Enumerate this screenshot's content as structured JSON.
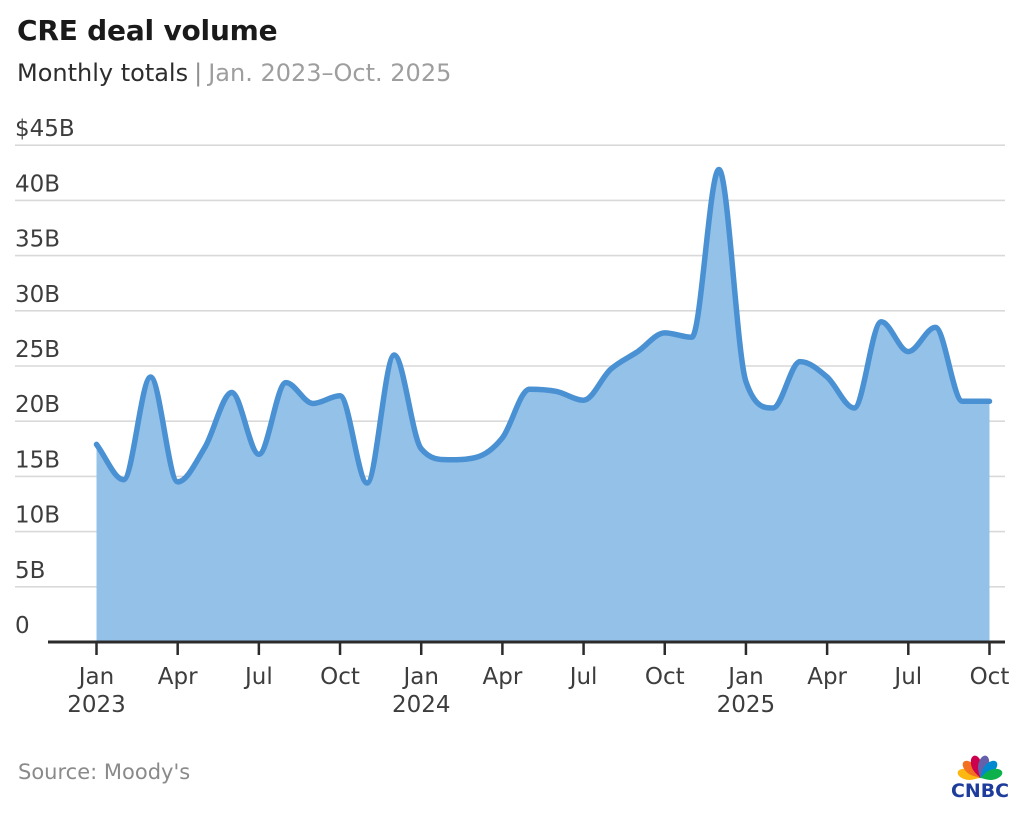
{
  "header": {
    "title": "CRE deal volume",
    "subtitle_main": "Monthly totals",
    "subtitle_separator": "|",
    "subtitle_range": "Jan. 2023–Oct. 2025"
  },
  "footer": {
    "source": "Source: Moody's",
    "logo_text": "CNBC"
  },
  "colors": {
    "line": "#4a91d3",
    "fill": "#94c1e8",
    "grid": "#d9d9d9",
    "axis": "#2b2b2b",
    "tick": "#2b2b2b",
    "axis_label": "#3d3d3d",
    "logo_text": "#1e3c9b",
    "peacock": [
      "#FCB711",
      "#F37021",
      "#CC004C",
      "#6460AA",
      "#0089D0",
      "#0DB14B"
    ]
  },
  "chart_data": {
    "type": "area",
    "title": "CRE deal volume",
    "subtitle": "Monthly totals | Jan. 2023–Oct. 2025",
    "unit": "USD billions",
    "source": "Moody's",
    "grid": true,
    "legend": false,
    "ylim": [
      0,
      45
    ],
    "x": [
      "Jan 2023",
      "Feb 2023",
      "Mar 2023",
      "Apr 2023",
      "May 2023",
      "Jun 2023",
      "Jul 2023",
      "Aug 2023",
      "Sep 2023",
      "Oct 2023",
      "Nov 2023",
      "Dec 2023",
      "Jan 2024",
      "Feb 2024",
      "Mar 2024",
      "Apr 2024",
      "May 2024",
      "Jun 2024",
      "Jul 2024",
      "Aug 2024",
      "Sep 2024",
      "Oct 2024",
      "Nov 2024",
      "Dec 2024",
      "Jan 2025",
      "Feb 2025",
      "Mar 2025",
      "Apr 2025",
      "May 2025",
      "Jun 2025",
      "Jul 2025",
      "Aug 2025",
      "Sep 2025",
      "Oct 2025"
    ],
    "values": [
      17.9,
      14.7,
      24.0,
      14.5,
      17.6,
      22.6,
      17.0,
      23.5,
      21.6,
      22.3,
      14.4,
      26.0,
      17.5,
      16.5,
      16.7,
      18.5,
      22.9,
      22.7,
      21.9,
      24.7,
      26.3,
      28.0,
      27.6,
      42.8,
      23.6,
      21.2,
      25.4,
      24.0,
      21.2,
      29.0,
      26.3,
      28.5,
      21.8,
      21.8
    ],
    "yticks": [
      {
        "label": "$45B",
        "value": 45
      },
      {
        "label": "40B",
        "value": 40
      },
      {
        "label": "35B",
        "value": 35
      },
      {
        "label": "30B",
        "value": 30
      },
      {
        "label": "25B",
        "value": 25
      },
      {
        "label": "20B",
        "value": 20
      },
      {
        "label": "15B",
        "value": 15
      },
      {
        "label": "10B",
        "value": 10
      },
      {
        "label": "5B",
        "value": 5
      },
      {
        "label": "0",
        "value": 0
      }
    ],
    "xtick_labels": [
      "Jan",
      "Apr",
      "Jul",
      "Oct",
      "Jan",
      "Apr",
      "Jul",
      "Oct",
      "Jan",
      "Apr",
      "Jul",
      "Oct"
    ],
    "year_labels": [
      {
        "text": "2023",
        "month_index": 0
      },
      {
        "text": "2024",
        "month_index": 12
      },
      {
        "text": "2025",
        "month_index": 24
      }
    ]
  }
}
